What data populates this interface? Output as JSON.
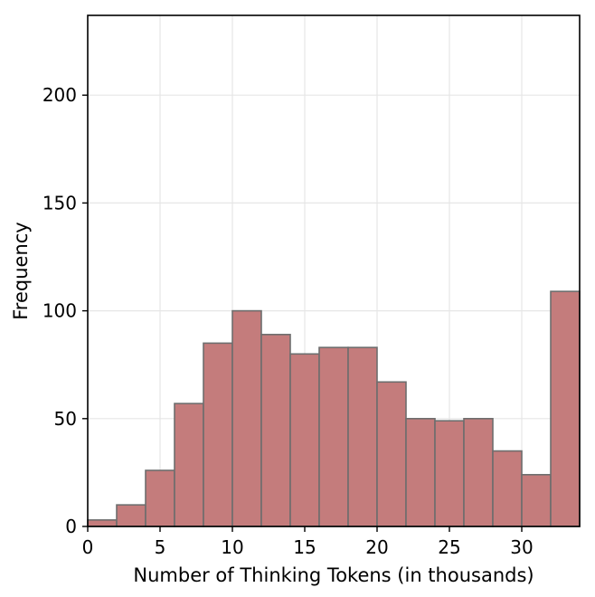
{
  "chart_data": {
    "type": "bar",
    "subtype": "histogram",
    "xlabel": "Number of Thinking Tokens (in thousands)",
    "ylabel": "Frequency",
    "xlim": [
      0,
      34
    ],
    "ylim": [
      0,
      237
    ],
    "xticks": [
      0,
      5,
      10,
      15,
      20,
      25,
      30
    ],
    "yticks": [
      0,
      50,
      100,
      150,
      200
    ],
    "grid": true,
    "bin_width": 2,
    "bins": [
      {
        "x0": 0,
        "x1": 2,
        "value": 3
      },
      {
        "x0": 2,
        "x1": 4,
        "value": 10
      },
      {
        "x0": 4,
        "x1": 6,
        "value": 26
      },
      {
        "x0": 6,
        "x1": 8,
        "value": 57
      },
      {
        "x0": 8,
        "x1": 10,
        "value": 85
      },
      {
        "x0": 10,
        "x1": 12,
        "value": 100
      },
      {
        "x0": 12,
        "x1": 14,
        "value": 89
      },
      {
        "x0": 14,
        "x1": 16,
        "value": 80
      },
      {
        "x0": 16,
        "x1": 18,
        "value": 83
      },
      {
        "x0": 18,
        "x1": 20,
        "value": 83
      },
      {
        "x0": 20,
        "x1": 22,
        "value": 67
      },
      {
        "x0": 22,
        "x1": 24,
        "value": 50
      },
      {
        "x0": 24,
        "x1": 26,
        "value": 49
      },
      {
        "x0": 26,
        "x1": 28,
        "value": 50
      },
      {
        "x0": 28,
        "x1": 30,
        "value": 35
      },
      {
        "x0": 30,
        "x1": 32,
        "value": 24
      },
      {
        "x0": 32,
        "x1": 34,
        "value": 109
      }
    ],
    "colors": {
      "bar_fill": "#c47c7c",
      "bar_edge": "#6e6e6e",
      "grid": "#e6e6e6"
    }
  }
}
